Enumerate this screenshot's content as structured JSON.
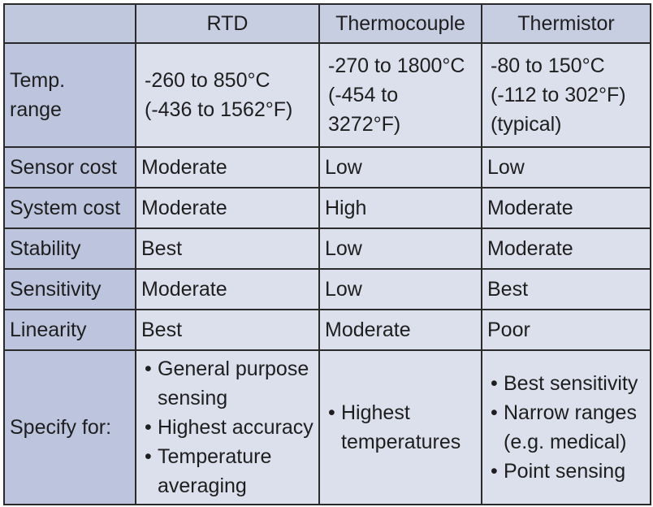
{
  "table": {
    "header": [
      "RTD",
      "Thermocouple",
      "Thermistor"
    ],
    "rows": [
      {
        "label": [
          "Temp.",
          "range"
        ],
        "cells": [
          [
            "-260 to  850°C",
            "(-436 to 1562°F)"
          ],
          [
            "-270 to 1800°C",
            "(-454 to 3272°F)"
          ],
          [
            "-80 to 150°C",
            "(-112 to 302°F)",
            "(typical)"
          ]
        ]
      },
      {
        "label": [
          "Sensor cost"
        ],
        "cells": [
          "Moderate",
          "Low",
          "Low"
        ]
      },
      {
        "label": [
          "System cost"
        ],
        "cells": [
          "Moderate",
          "High",
          "Moderate"
        ]
      },
      {
        "label": [
          "Stability"
        ],
        "cells": [
          "Best",
          "Low",
          "Moderate"
        ]
      },
      {
        "label": [
          "Sensitivity"
        ],
        "cells": [
          "Moderate",
          "Low",
          "Best"
        ]
      },
      {
        "label": [
          "Linearity"
        ],
        "cells": [
          "Best",
          "Moderate",
          "Poor"
        ]
      },
      {
        "label": [
          "Specify for:"
        ],
        "cells": [
          [
            [
              "General purpose",
              "sensing"
            ],
            [
              "Highest accuracy"
            ],
            [
              "Temperature",
              "averaging"
            ]
          ],
          [
            [
              "Highest",
              "temperatures"
            ]
          ],
          [
            [
              "Best sensitivity"
            ],
            [
              "Narrow ranges",
              "(e.g. medical)"
            ],
            [
              "Point sensing"
            ]
          ]
        ]
      }
    ]
  }
}
